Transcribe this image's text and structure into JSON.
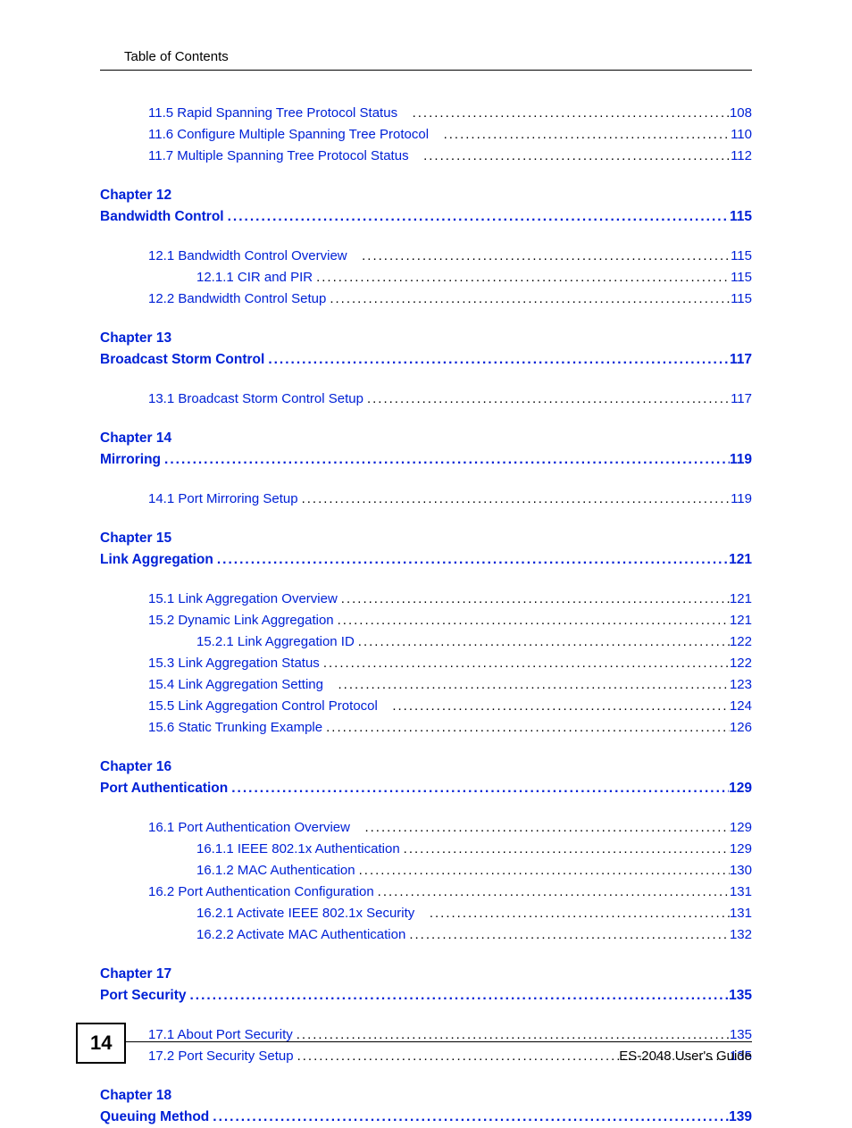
{
  "header": {
    "title": "Table of Contents"
  },
  "dots": "..................................................................................................................................................................................",
  "pre_entries": [
    {
      "indent": 1,
      "label": "11.5 Rapid Spanning Tree Protocol Status",
      "page": "108",
      "gap": true
    },
    {
      "indent": 1,
      "label": "11.6 Configure Multiple Spanning Tree Protocol",
      "page": "110",
      "gap": true
    },
    {
      "indent": 1,
      "label": "11.7 Multiple Spanning Tree Protocol Status",
      "page": "112",
      "gap": true
    }
  ],
  "chapters": [
    {
      "chapter": "Chapter  12",
      "title": "Bandwidth Control",
      "page": "115",
      "entries": [
        {
          "indent": 1,
          "label": "12.1 Bandwidth Control Overview",
          "page": "115",
          "gap": true
        },
        {
          "indent": 2,
          "label": "12.1.1 CIR and PIR",
          "page": "115"
        },
        {
          "indent": 1,
          "label": "12.2 Bandwidth Control Setup",
          "page": "115"
        }
      ]
    },
    {
      "chapter": "Chapter  13",
      "title": "Broadcast Storm Control",
      "page": "117",
      "entries": [
        {
          "indent": 1,
          "label": "13.1 Broadcast Storm Control Setup",
          "page": "117"
        }
      ]
    },
    {
      "chapter": "Chapter  14",
      "title": "Mirroring",
      "page": "119",
      "entries": [
        {
          "indent": 1,
          "label": "14.1 Port Mirroring Setup",
          "page": "119"
        }
      ]
    },
    {
      "chapter": "Chapter  15",
      "title": "Link Aggregation",
      "page": "121",
      "entries": [
        {
          "indent": 1,
          "label": "15.1 Link Aggregation Overview",
          "page": "121"
        },
        {
          "indent": 1,
          "label": "15.2 Dynamic Link Aggregation",
          "page": "121"
        },
        {
          "indent": 2,
          "label": "15.2.1 Link Aggregation ID",
          "page": "122"
        },
        {
          "indent": 1,
          "label": "15.3 Link Aggregation Status",
          "page": "122"
        },
        {
          "indent": 1,
          "label": "15.4 Link Aggregation Setting",
          "page": "123",
          "gap": true
        },
        {
          "indent": 1,
          "label": "15.5 Link Aggregation Control Protocol",
          "page": "124",
          "gap": true
        },
        {
          "indent": 1,
          "label": "15.6 Static Trunking Example",
          "page": "126"
        }
      ]
    },
    {
      "chapter": "Chapter  16",
      "title": "Port Authentication",
      "page": "129",
      "entries": [
        {
          "indent": 1,
          "label": "16.1 Port Authentication Overview",
          "page": "129",
          "gap": true
        },
        {
          "indent": 2,
          "label": "16.1.1 IEEE 802.1x Authentication",
          "page": "129"
        },
        {
          "indent": 2,
          "label": "16.1.2 MAC Authentication",
          "page": "130"
        },
        {
          "indent": 1,
          "label": "16.2 Port Authentication Configuration",
          "page": "131"
        },
        {
          "indent": 2,
          "label": "16.2.1 Activate IEEE 802.1x Security",
          "page": "131",
          "gap": true
        },
        {
          "indent": 2,
          "label": "16.2.2 Activate MAC Authentication",
          "page": "132"
        }
      ]
    },
    {
      "chapter": "Chapter  17",
      "title": "Port Security",
      "page": "135",
      "entries": [
        {
          "indent": 1,
          "label": "17.1 About Port Security",
          "page": "135"
        },
        {
          "indent": 1,
          "label": "17.2 Port Security Setup",
          "page": "135"
        }
      ]
    },
    {
      "chapter": "Chapter  18",
      "title": "Queuing Method",
      "page": "139",
      "entries": []
    }
  ],
  "footer": {
    "page_number": "14",
    "guide": "ES-2048 User's Guide"
  }
}
